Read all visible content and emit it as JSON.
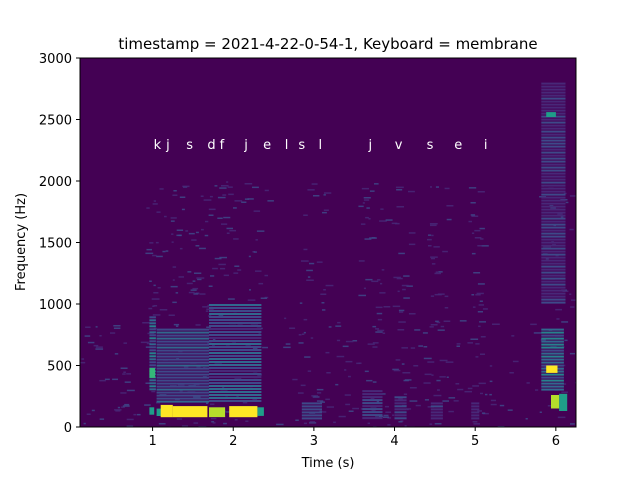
{
  "chart_data": {
    "type": "heatmap",
    "title": "timestamp = 2021-4-22-0-54-1, Keyboard = membrane",
    "xlabel": "Time (s)",
    "ylabel": "Frequency (Hz)",
    "xlim": [
      0.1,
      6.25
    ],
    "ylim": [
      0,
      3000
    ],
    "x_ticks": [
      1,
      2,
      3,
      4,
      5,
      6
    ],
    "y_ticks": [
      0,
      500,
      1000,
      1500,
      2000,
      2500,
      3000
    ],
    "grid": false,
    "colormap": "viridis",
    "background_color": "#440154",
    "key_label_y": 2300,
    "key_labels": [
      {
        "t": 1.06,
        "text": "k"
      },
      {
        "t": 1.19,
        "text": "j"
      },
      {
        "t": 1.46,
        "text": "s"
      },
      {
        "t": 1.73,
        "text": "d"
      },
      {
        "t": 1.86,
        "text": "f"
      },
      {
        "t": 2.16,
        "text": "j"
      },
      {
        "t": 2.42,
        "text": "e"
      },
      {
        "t": 2.66,
        "text": "l"
      },
      {
        "t": 2.85,
        "text": "s"
      },
      {
        "t": 3.08,
        "text": "l"
      },
      {
        "t": 3.7,
        "text": "j"
      },
      {
        "t": 4.05,
        "text": "v"
      },
      {
        "t": 4.44,
        "text": "s"
      },
      {
        "t": 4.79,
        "text": "e"
      },
      {
        "t": 5.13,
        "text": "i"
      }
    ],
    "energy_regions": [
      {
        "t0": 1.1,
        "t1": 1.25,
        "f0": 80,
        "f1": 180,
        "level": 0.95
      },
      {
        "t0": 1.25,
        "t1": 1.68,
        "f0": 80,
        "f1": 170,
        "level": 1.0
      },
      {
        "t0": 1.7,
        "t1": 1.9,
        "f0": 80,
        "f1": 160,
        "level": 0.9
      },
      {
        "t0": 1.95,
        "t1": 2.3,
        "f0": 80,
        "f1": 170,
        "level": 0.95
      },
      {
        "t0": 1.05,
        "t1": 1.12,
        "f0": 90,
        "f1": 150,
        "level": 0.6
      },
      {
        "t0": 2.3,
        "t1": 2.38,
        "f0": 90,
        "f1": 160,
        "level": 0.55
      },
      {
        "t0": 0.96,
        "t1": 1.02,
        "f0": 100,
        "f1": 160,
        "level": 0.55
      },
      {
        "t0": 0.96,
        "t1": 1.03,
        "f0": 400,
        "f1": 480,
        "level": 0.65
      },
      {
        "t0": 5.88,
        "t1": 6.02,
        "f0": 440,
        "f1": 500,
        "level": 0.95
      },
      {
        "t0": 5.94,
        "t1": 6.04,
        "f0": 150,
        "f1": 260,
        "level": 0.9
      },
      {
        "t0": 6.04,
        "t1": 6.14,
        "f0": 130,
        "f1": 270,
        "level": 0.5
      },
      {
        "t0": 5.88,
        "t1": 6.0,
        "f0": 2520,
        "f1": 2560,
        "level": 0.5
      },
      {
        "t0": 0.96,
        "t1": 1.04,
        "f0": 300,
        "f1": 900,
        "level": 0.35
      },
      {
        "t0": 1.05,
        "t1": 1.7,
        "f0": 200,
        "f1": 800,
        "level": 0.25
      },
      {
        "t0": 1.7,
        "t1": 2.35,
        "f0": 200,
        "f1": 1000,
        "level": 0.25
      },
      {
        "t0": 5.82,
        "t1": 6.1,
        "f0": 300,
        "f1": 800,
        "level": 0.35
      },
      {
        "t0": 5.82,
        "t1": 6.12,
        "f0": 1000,
        "f1": 2800,
        "level": 0.15
      },
      {
        "t0": 2.85,
        "t1": 3.1,
        "f0": 60,
        "f1": 200,
        "level": 0.2
      },
      {
        "t0": 3.6,
        "t1": 3.85,
        "f0": 60,
        "f1": 300,
        "level": 0.18
      },
      {
        "t0": 4.0,
        "t1": 4.15,
        "f0": 60,
        "f1": 250,
        "level": 0.15
      },
      {
        "t0": 4.45,
        "t1": 4.6,
        "f0": 60,
        "f1": 200,
        "level": 0.15
      },
      {
        "t0": 4.95,
        "t1": 5.05,
        "f0": 60,
        "f1": 200,
        "level": 0.12
      }
    ]
  }
}
